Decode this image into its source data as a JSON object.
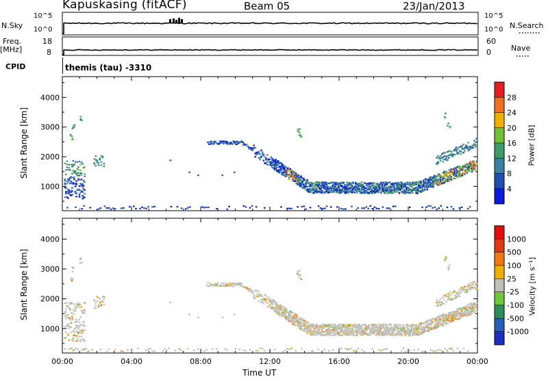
{
  "header": {
    "site": "Kapuskasing (fitACF)",
    "beam": "Beam 05",
    "date": "23/Jan/2013"
  },
  "strips": {
    "nsky_label": "N.Sky",
    "nsky_ticks": [
      "10^5",
      "10^0"
    ],
    "nsearch_label": "N.Search",
    "nsearch_ticks": [
      "10^5",
      "10^0"
    ],
    "freq_label": "Freq.",
    "freq_unit": "[MHz]",
    "freq_ticks": [
      "18",
      "8"
    ],
    "nave_label": "Nave",
    "nave_ticks": [
      "60",
      "0"
    ],
    "cpid_label": "CPID",
    "cpid_value": "themis (tau) -3310"
  },
  "chart_data": [
    {
      "type": "heatmap",
      "name": "power",
      "ylabel": "Slant Range [km]",
      "yticks": [
        1000,
        2000,
        3000,
        4000
      ],
      "ylim": [
        180,
        4700
      ],
      "xlim": [
        0,
        24
      ],
      "xticks": [
        "00:00",
        "04:00",
        "08:00",
        "12:00",
        "16:00",
        "20:00",
        "00:00"
      ],
      "colorbar": {
        "label": "Power [dB]",
        "ticks": [
          "28",
          "24",
          "20",
          "16",
          "12",
          "8",
          "4"
        ],
        "colors": [
          "#0a1cd6",
          "#214fb0",
          "#3f7fa0",
          "#3f9b6a",
          "#6fbf3a",
          "#f0b000",
          "#f07020",
          "#e02020"
        ]
      }
    },
    {
      "type": "heatmap",
      "name": "velocity",
      "ylabel": "Slant Range [km]",
      "yticks": [
        1000,
        2000,
        3000,
        4000
      ],
      "ylim": [
        180,
        4700
      ],
      "xlim": [
        0,
        24
      ],
      "xticks": [
        "00:00",
        "04:00",
        "08:00",
        "12:00",
        "16:00",
        "20:00",
        "00:00"
      ],
      "xlabel": "Time UT",
      "colorbar": {
        "label": "Velocity [m s⁻¹]",
        "ticks": [
          "1000",
          "500",
          "100",
          "25",
          "-25",
          "-100",
          "-500",
          "-1000"
        ],
        "colors": [
          "#1a2fc0",
          "#2a5fb8",
          "#2f8c5a",
          "#6cc83a",
          "#c0c0b8",
          "#f0b000",
          "#f07a10",
          "#e03a10",
          "#e01010"
        ]
      }
    }
  ]
}
